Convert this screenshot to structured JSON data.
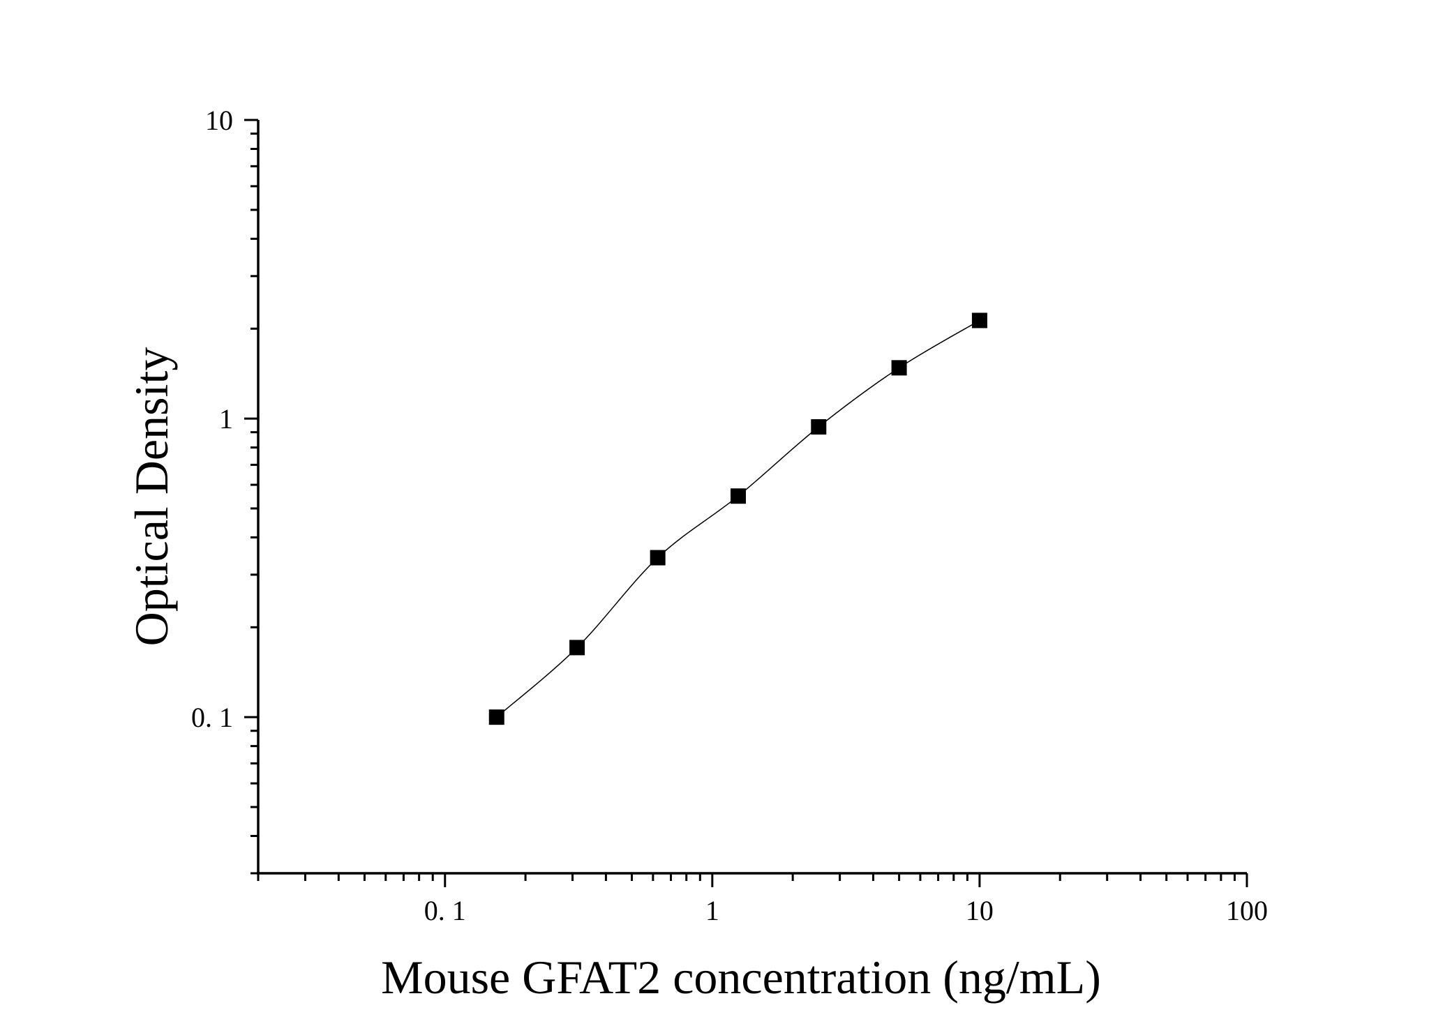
{
  "chart_data": {
    "type": "scatter",
    "xlabel": "Mouse GFAT2 concentration (ng/mL)",
    "ylabel": "Optical Density",
    "x_scale": "log",
    "y_scale": "log",
    "xlim": [
      0.02,
      100
    ],
    "ylim": [
      0.03,
      10
    ],
    "x_ticks": [
      0.1,
      1,
      10,
      100
    ],
    "x_tick_labels": [
      "0. 1",
      "1",
      "10",
      "100"
    ],
    "y_ticks": [
      0.1,
      1,
      10
    ],
    "y_tick_labels": [
      "0. 1",
      "1",
      "10"
    ],
    "grid": false,
    "legend": "none",
    "series": [
      {
        "marker": "square",
        "color": "#000000",
        "fit_line": true,
        "x": [
          0.156,
          0.312,
          0.625,
          1.25,
          2.5,
          5,
          10
        ],
        "y": [
          0.1,
          0.171,
          0.342,
          0.55,
          0.938,
          1.479,
          2.131
        ]
      }
    ]
  }
}
